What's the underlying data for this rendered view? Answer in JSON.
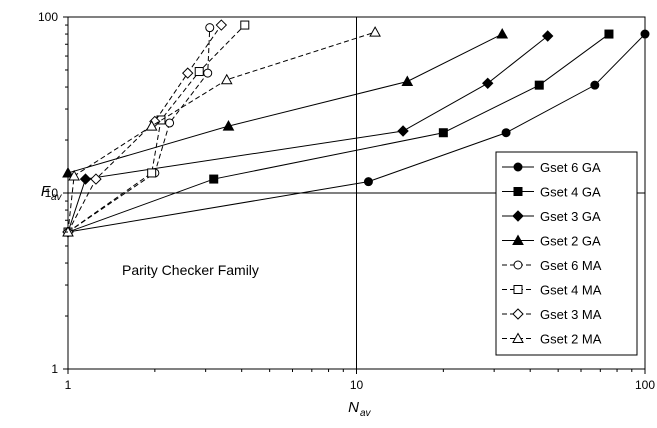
{
  "chart_data": {
    "type": "line",
    "xlabel": "N",
    "xlabel_sub": "av",
    "ylabel": "F",
    "ylabel_sub": "av",
    "xscale": "log",
    "yscale": "log",
    "xlim": [
      1,
      100
    ],
    "ylim": [
      1,
      100
    ],
    "x_ticks": [
      1,
      10,
      100
    ],
    "y_ticks": [
      1,
      10,
      100
    ],
    "x_tick_labels": [
      "1",
      "10",
      "100"
    ],
    "y_tick_labels": [
      "1",
      "10",
      "100"
    ],
    "grid": "major",
    "legend_position": "right",
    "annotation": "Parity Checker Family",
    "series": [
      {
        "name": "Gset 6 GA",
        "marker": "circle",
        "fill": "filled",
        "dash": "solid",
        "x": [
          1,
          11,
          33,
          67,
          100
        ],
        "y": [
          6,
          11.6,
          22,
          41,
          80
        ]
      },
      {
        "name": "Gset 4 GA",
        "marker": "square",
        "fill": "filled",
        "dash": "solid",
        "x": [
          1,
          3.2,
          20,
          43,
          75
        ],
        "y": [
          6,
          12,
          22,
          41,
          80
        ]
      },
      {
        "name": "Gset 3 GA",
        "marker": "diamond",
        "fill": "filled",
        "dash": "solid",
        "x": [
          1,
          1.15,
          14.5,
          28.5,
          46
        ],
        "y": [
          6,
          12,
          22.5,
          42,
          78
        ]
      },
      {
        "name": "Gset 2 GA",
        "marker": "triangle",
        "fill": "filled",
        "dash": "solid",
        "x": [
          1,
          3.6,
          15,
          32
        ],
        "y": [
          13,
          24,
          43,
          80
        ]
      },
      {
        "name": "Gset 6 MA",
        "marker": "circle",
        "fill": "open",
        "dash": "dashed",
        "x": [
          1,
          2.0,
          2.25,
          3.05,
          3.1
        ],
        "y": [
          6,
          13,
          25,
          48,
          87
        ]
      },
      {
        "name": "Gset 4 MA",
        "marker": "square",
        "fill": "open",
        "dash": "dashed",
        "x": [
          1,
          1.95,
          2.1,
          2.85,
          4.1
        ],
        "y": [
          6,
          13,
          26,
          49,
          90
        ]
      },
      {
        "name": "Gset 3 MA",
        "marker": "diamond",
        "fill": "open",
        "dash": "dashed",
        "x": [
          1,
          1.25,
          2.0,
          2.6,
          3.4
        ],
        "y": [
          6,
          12,
          25.5,
          48,
          90
        ]
      },
      {
        "name": "Gset 2 MA",
        "marker": "triangle",
        "fill": "open",
        "dash": "dashed",
        "x": [
          1,
          1.05,
          1.95,
          3.55,
          11.6
        ],
        "y": [
          6,
          12.5,
          24,
          44,
          82
        ]
      }
    ]
  }
}
